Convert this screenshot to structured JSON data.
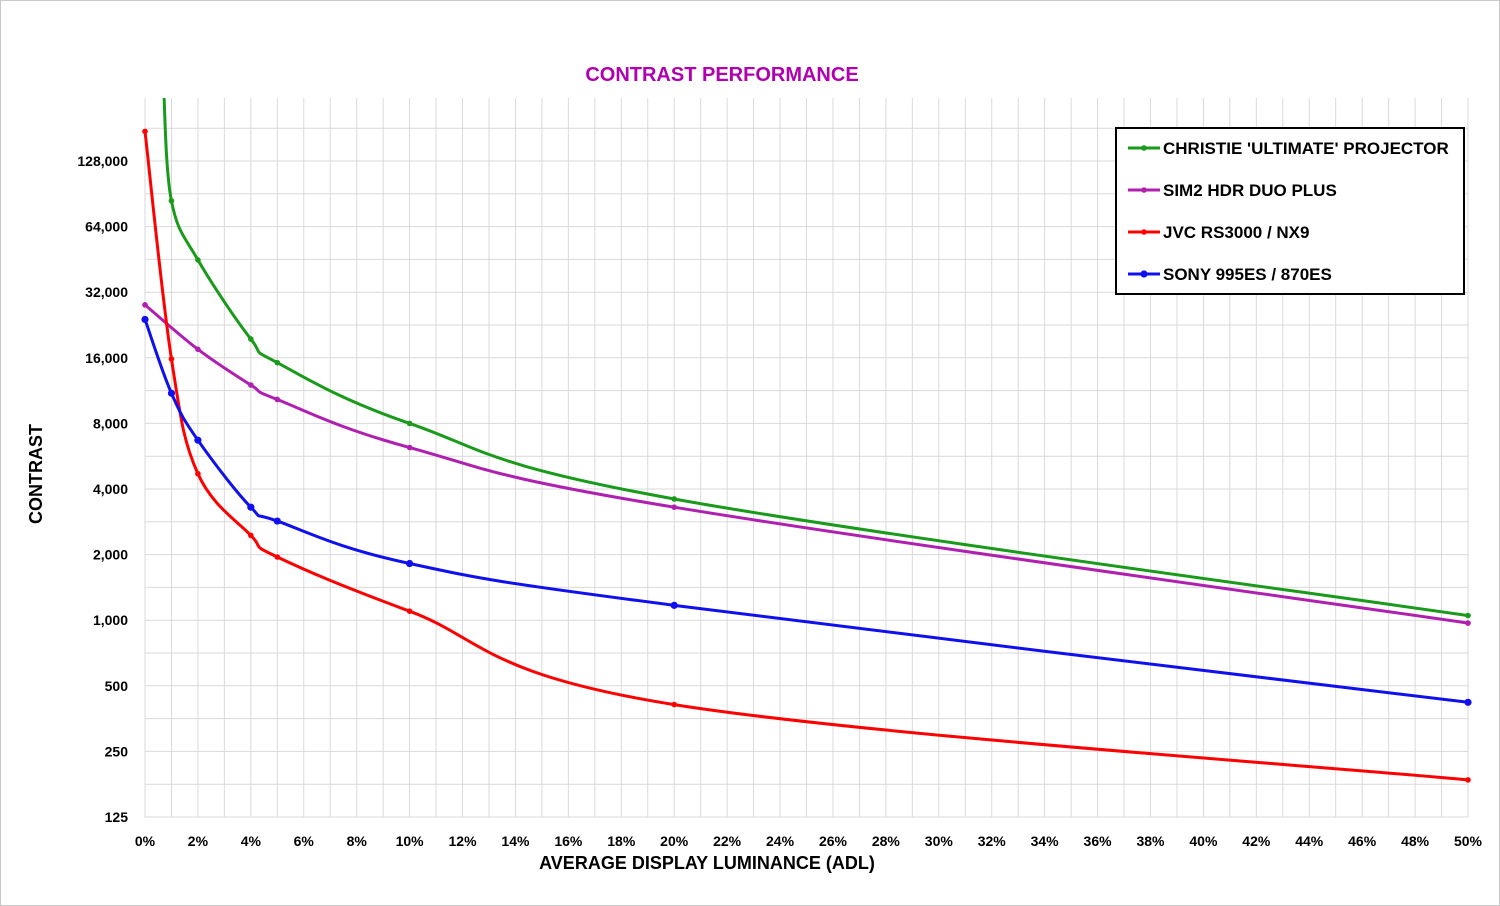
{
  "chart_data": {
    "type": "line",
    "title": "CONTRAST PERFORMANCE",
    "title_color": "#b000b0",
    "xlabel": "AVERAGE DISPLAY LUMINANCE (ADL)",
    "ylabel": "CONTRAST",
    "x_scale": "linear",
    "y_scale": "log2",
    "xlim": [
      0,
      50
    ],
    "ylim": [
      125,
      200000
    ],
    "grid": true,
    "legend_position": "top-right",
    "x_ticks": [
      0,
      2,
      4,
      6,
      8,
      10,
      12,
      14,
      16,
      18,
      20,
      22,
      24,
      26,
      28,
      30,
      32,
      34,
      36,
      38,
      40,
      42,
      44,
      46,
      48,
      50
    ],
    "x_tick_labels": [
      "0%",
      "2%",
      "4%",
      "6%",
      "8%",
      "10%",
      "12%",
      "14%",
      "16%",
      "18%",
      "20%",
      "22%",
      "24%",
      "26%",
      "28%",
      "30%",
      "32%",
      "34%",
      "36%",
      "38%",
      "40%",
      "42%",
      "44%",
      "46%",
      "48%",
      "50%"
    ],
    "y_ticks": [
      125,
      250,
      500,
      1000,
      2000,
      4000,
      8000,
      16000,
      32000,
      64000,
      128000
    ],
    "y_tick_labels": [
      "125",
      "250",
      "500",
      "1,000",
      "2,000",
      "4,000",
      "8,000",
      "16,000",
      "32,000",
      "64,000",
      "128,000"
    ],
    "series": [
      {
        "name": "CHRISTIE 'ULTIMATE' PROJECTOR",
        "color": "#1a9a1a",
        "x": [
          1,
          2,
          4,
          5,
          10,
          20,
          50
        ],
        "y": [
          84000,
          45000,
          19500,
          15200,
          8000,
          3600,
          1050
        ],
        "y_above_axis_at": 0.7
      },
      {
        "name": "SIM2 HDR DUO PLUS",
        "color": "#b020b0",
        "x": [
          0,
          2,
          4,
          5,
          10,
          20,
          50
        ],
        "y": [
          28000,
          17500,
          12000,
          10300,
          6200,
          3300,
          970
        ]
      },
      {
        "name": "JVC RS3000 / NX9",
        "color": "#ff0000",
        "x": [
          0,
          1,
          2,
          4,
          5,
          10,
          20,
          50
        ],
        "y": [
          175000,
          15800,
          4700,
          2450,
          1950,
          1100,
          410,
          185
        ]
      },
      {
        "name": "SONY 995ES / 870ES",
        "color": "#1010ee",
        "x": [
          0,
          1,
          2,
          4,
          5,
          10,
          20,
          50
        ],
        "y": [
          24000,
          11000,
          6700,
          3300,
          2850,
          1820,
          1170,
          420
        ]
      }
    ]
  }
}
